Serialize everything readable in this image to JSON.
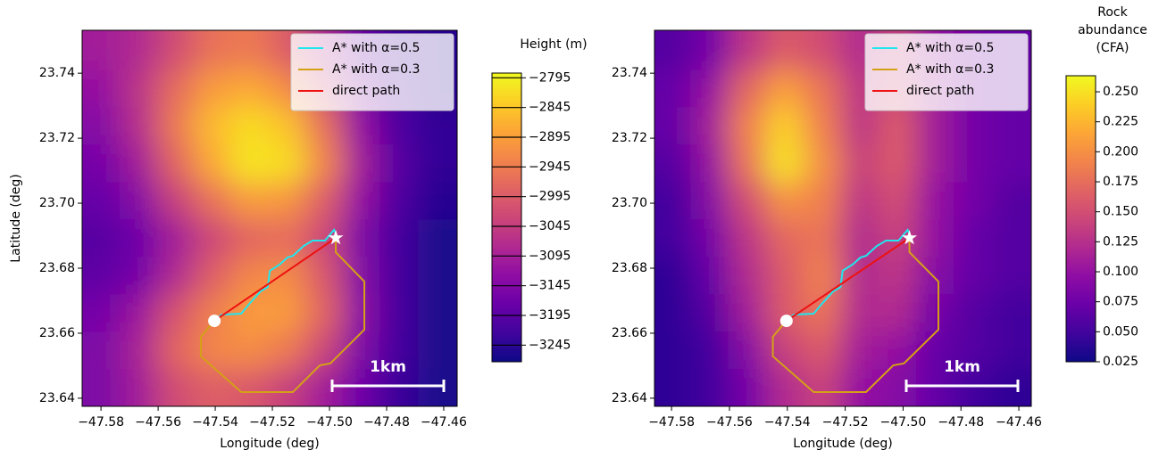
{
  "chart_data": [
    {
      "type": "heatmap",
      "xlabel": "Longitude (deg)",
      "ylabel": "Latitude (deg)",
      "xlim": [
        -47.5866,
        -47.4553
      ],
      "ylim": [
        23.6375,
        23.7532
      ],
      "xticks": [
        {
          "value": -47.58,
          "label": "−47.58"
        },
        {
          "value": -47.56,
          "label": "−47.56"
        },
        {
          "value": -47.54,
          "label": "−47.54"
        },
        {
          "value": -47.52,
          "label": "−47.52"
        },
        {
          "value": -47.5,
          "label": "−47.50"
        },
        {
          "value": -47.48,
          "label": "−47.48"
        },
        {
          "value": -47.46,
          "label": "−47.46"
        }
      ],
      "yticks": [
        23.64,
        23.66,
        23.68,
        {
          "value": 23.7,
          "label": "23.70"
        },
        23.72,
        23.74
      ],
      "x": [
        -47.58,
        -47.567,
        -47.554,
        -47.541,
        -47.528,
        -47.515,
        -47.502,
        -47.489,
        -47.476,
        -47.462
      ],
      "y": [
        23.747,
        23.735,
        23.724,
        23.712,
        23.701,
        23.689,
        23.678,
        23.666,
        23.655,
        23.643
      ],
      "z": [
        [
          -3100,
          -3080,
          -3020,
          -2960,
          -2950,
          -2990,
          -3080,
          -3180,
          -3230,
          -3250
        ],
        [
          -3120,
          -3060,
          -2970,
          -2900,
          -2880,
          -2920,
          -3020,
          -3150,
          -3220,
          -3250
        ],
        [
          -3140,
          -3070,
          -2950,
          -2860,
          -2820,
          -2850,
          -2960,
          -3120,
          -3210,
          -3240
        ],
        [
          -3160,
          -3100,
          -2980,
          -2880,
          -2810,
          -2820,
          -2930,
          -3100,
          -3200,
          -3240
        ],
        [
          -3180,
          -3140,
          -3040,
          -2960,
          -2900,
          -2910,
          -2990,
          -3120,
          -3210,
          -3250
        ],
        [
          -3200,
          -3170,
          -3100,
          -3030,
          -2980,
          -2970,
          -3030,
          -3150,
          -3220,
          -3260
        ],
        [
          -3190,
          -3160,
          -3080,
          -2990,
          -2930,
          -2920,
          -3000,
          -3140,
          -3220,
          -3260
        ],
        [
          -3160,
          -3110,
          -3010,
          -2940,
          -2900,
          -2900,
          -2980,
          -3130,
          -3220,
          -3260
        ],
        [
          -3150,
          -3090,
          -2980,
          -2930,
          -2920,
          -2950,
          -3030,
          -3150,
          -3220,
          -3260
        ],
        [
          -3150,
          -3100,
          -3020,
          -2990,
          -3000,
          -3040,
          -3100,
          -3170,
          -3230,
          -3260
        ]
      ],
      "colormap": [
        "#0d0887",
        "#41049d",
        "#6a00a8",
        "#8f0da4",
        "#b12a90",
        "#cc4778",
        "#e16462",
        "#f2844b",
        "#fca636",
        "#fcce25",
        "#f0f921"
      ],
      "clim": [
        -3273,
        -2787
      ],
      "colorbar_label": [
        "Height (m)"
      ],
      "colorbar_ticks": [
        {
          "value": -2795,
          "label": "−2795"
        },
        {
          "value": -2845,
          "label": "−2845"
        },
        {
          "value": -2895,
          "label": "−2895"
        },
        {
          "value": -2945,
          "label": "−2945"
        },
        {
          "value": -2995,
          "label": "−2995"
        },
        {
          "value": -3045,
          "label": "−3045"
        },
        {
          "value": -3095,
          "label": "−3095"
        },
        {
          "value": -3145,
          "label": "−3145"
        },
        {
          "value": -3195,
          "label": "−3195"
        },
        {
          "value": -3245,
          "label": "−3245"
        }
      ],
      "legend": "upper right",
      "series": [
        {
          "name": "A* with α=0.5",
          "color": "#22e6ee",
          "x": [
            -47.5403,
            -47.5378,
            -47.5309,
            -47.5278,
            -47.5241,
            -47.5216,
            -47.5209,
            -47.5175,
            -47.5147,
            -47.5128,
            -47.5091,
            -47.5059,
            -47.5016,
            -47.4984,
            -47.4975
          ],
          "values": [
            23.6638,
            23.6657,
            23.666,
            23.6693,
            23.6729,
            23.6742,
            23.6792,
            23.6811,
            23.6833,
            23.6838,
            23.6868,
            23.6885,
            23.6885,
            23.6918,
            23.6899
          ]
        },
        {
          "name": "A* with α=0.3",
          "color": "#d4a017",
          "x": [
            -47.4978,
            -47.4978,
            -47.4878,
            -47.4878,
            -47.4997,
            -47.5034,
            -47.5128,
            -47.5309,
            -47.545,
            -47.545,
            -47.5409
          ],
          "values": [
            23.689,
            23.6849,
            23.6759,
            23.6611,
            23.6507,
            23.6501,
            23.6419,
            23.6419,
            23.6529,
            23.6589,
            23.6633
          ]
        },
        {
          "name": "direct path",
          "color": "#ee1111",
          "x": [
            -47.5403,
            -47.4978
          ],
          "values": [
            23.6638,
            23.6893
          ]
        }
      ],
      "start": {
        "x": -47.5403,
        "y": 23.6638
      },
      "goal": {
        "x": -47.4978,
        "y": 23.6893
      },
      "scale_bar_label": "1km"
    },
    {
      "type": "heatmap",
      "xlabel": "Longitude (deg)",
      "xlim": [
        -47.5859,
        -47.4557
      ],
      "ylim": [
        23.6375,
        23.7532
      ],
      "xticks": [
        {
          "value": -47.58,
          "label": "−47.58"
        },
        {
          "value": -47.56,
          "label": "−47.56"
        },
        {
          "value": -47.54,
          "label": "−47.54"
        },
        {
          "value": -47.52,
          "label": "−47.52"
        },
        {
          "value": -47.5,
          "label": "−47.50"
        },
        {
          "value": -47.48,
          "label": "−47.48"
        },
        {
          "value": -47.46,
          "label": "−47.46"
        }
      ],
      "yticks": [
        23.64,
        23.66,
        23.68,
        {
          "value": 23.7,
          "label": "23.70"
        },
        23.72,
        23.74
      ],
      "x": [
        -47.58,
        -47.567,
        -47.554,
        -47.541,
        -47.528,
        -47.515,
        -47.502,
        -47.489,
        -47.476,
        -47.462
      ],
      "y": [
        23.747,
        23.735,
        23.724,
        23.712,
        23.701,
        23.689,
        23.678,
        23.666,
        23.655,
        23.643
      ],
      "z": [
        [
          0.06,
          0.08,
          0.13,
          0.16,
          0.15,
          0.12,
          0.14,
          0.1,
          0.08,
          0.07
        ],
        [
          0.07,
          0.1,
          0.17,
          0.21,
          0.18,
          0.13,
          0.15,
          0.11,
          0.08,
          0.07
        ],
        [
          0.07,
          0.11,
          0.19,
          0.24,
          0.19,
          0.13,
          0.16,
          0.11,
          0.08,
          0.07
        ],
        [
          0.06,
          0.1,
          0.18,
          0.25,
          0.2,
          0.14,
          0.16,
          0.11,
          0.08,
          0.07
        ],
        [
          0.05,
          0.09,
          0.15,
          0.2,
          0.19,
          0.13,
          0.15,
          0.1,
          0.08,
          0.06
        ],
        [
          0.05,
          0.08,
          0.13,
          0.17,
          0.18,
          0.12,
          0.14,
          0.1,
          0.07,
          0.06
        ],
        [
          0.04,
          0.07,
          0.12,
          0.16,
          0.19,
          0.12,
          0.13,
          0.09,
          0.07,
          0.06
        ],
        [
          0.04,
          0.06,
          0.11,
          0.16,
          0.18,
          0.12,
          0.12,
          0.08,
          0.06,
          0.05
        ],
        [
          0.04,
          0.05,
          0.09,
          0.14,
          0.16,
          0.11,
          0.1,
          0.07,
          0.06,
          0.05
        ],
        [
          0.04,
          0.05,
          0.08,
          0.12,
          0.14,
          0.1,
          0.09,
          0.07,
          0.05,
          0.04
        ]
      ],
      "colormap": [
        "#0d0887",
        "#41049d",
        "#6a00a8",
        "#8f0da4",
        "#b12a90",
        "#cc4778",
        "#e16462",
        "#f2844b",
        "#fca636",
        "#fcce25",
        "#f0f921"
      ],
      "clim": [
        0.025,
        0.2634
      ],
      "colorbar_label": [
        "Rock",
        "abundance",
        "(CFA)"
      ],
      "colorbar_ticks": [
        0.025,
        {
          "value": 0.05,
          "label": "0.050"
        },
        0.075,
        {
          "value": 0.1,
          "label": "0.100"
        },
        0.125,
        {
          "value": 0.15,
          "label": "0.150"
        },
        0.175,
        {
          "value": 0.2,
          "label": "0.200"
        },
        0.225,
        {
          "value": 0.25,
          "label": "0.250"
        }
      ],
      "legend": "upper right",
      "series": [
        {
          "name": "A* with α=0.5",
          "color": "#22e6ee",
          "x": [
            -47.5403,
            -47.5378,
            -47.5309,
            -47.5278,
            -47.5241,
            -47.5216,
            -47.5209,
            -47.5175,
            -47.5147,
            -47.5128,
            -47.5091,
            -47.5059,
            -47.5016,
            -47.4984,
            -47.4975
          ],
          "values": [
            23.6638,
            23.6657,
            23.666,
            23.6693,
            23.6729,
            23.6742,
            23.6792,
            23.6811,
            23.6833,
            23.6838,
            23.6868,
            23.6885,
            23.6885,
            23.6918,
            23.6899
          ]
        },
        {
          "name": "A* with α=0.3",
          "color": "#d4a017",
          "x": [
            -47.4978,
            -47.4978,
            -47.4878,
            -47.4878,
            -47.4997,
            -47.5034,
            -47.5128,
            -47.5309,
            -47.545,
            -47.545,
            -47.5409
          ],
          "values": [
            23.689,
            23.6849,
            23.6759,
            23.6611,
            23.6507,
            23.6501,
            23.6419,
            23.6419,
            23.6529,
            23.6589,
            23.6633
          ]
        },
        {
          "name": "direct path",
          "color": "#ee1111",
          "x": [
            -47.5403,
            -47.4978
          ],
          "values": [
            23.6638,
            23.6893
          ]
        }
      ],
      "start": {
        "x": -47.5403,
        "y": 23.6638
      },
      "goal": {
        "x": -47.4978,
        "y": 23.6893
      },
      "scale_bar_label": "1km"
    }
  ]
}
